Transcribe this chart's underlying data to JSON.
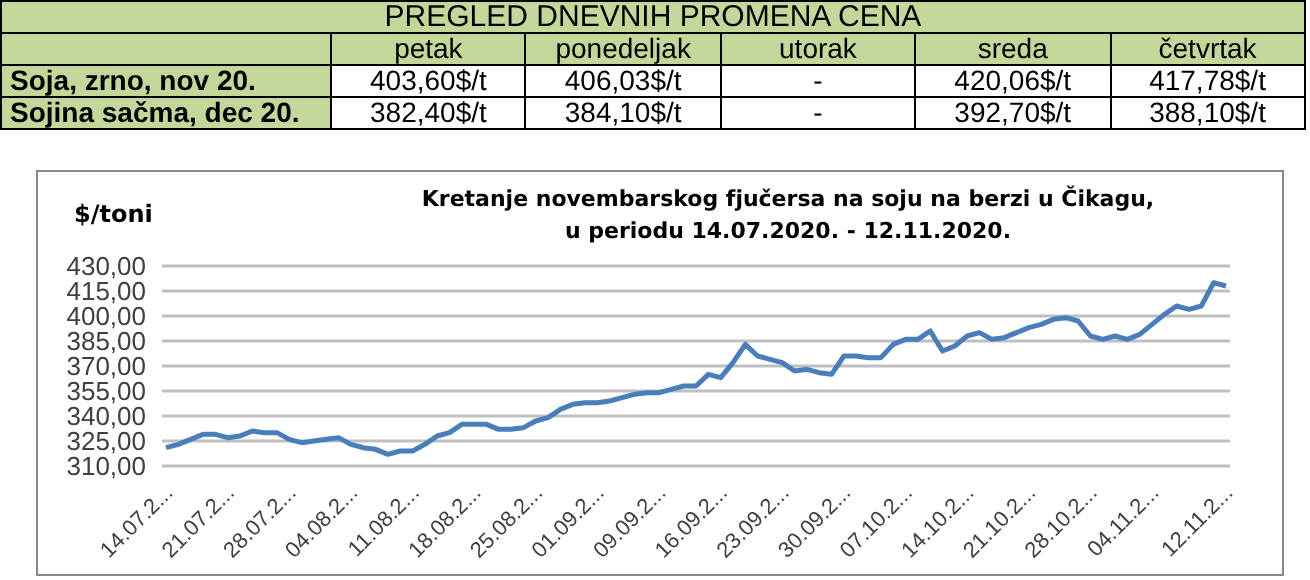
{
  "chart_data": [
    {
      "type": "other",
      "title": "PREGLED DNEVNIH PROMENA CENA",
      "categories": [
        "petak",
        "ponedeljak",
        "utorak",
        "sreda",
        "četvrtak"
      ],
      "series": [
        {
          "name": "Soja, zrno,  nov 20.",
          "values": [
            403.6,
            406.03,
            null,
            420.06,
            417.78
          ],
          "value_labels": [
            "403,60$/t",
            "406,03$/t",
            "-",
            "420,06$/t",
            "417,78$/t"
          ]
        },
        {
          "name": "Sojina sačma,  dec 20.",
          "values": [
            382.4,
            384.1,
            null,
            392.7,
            388.1
          ],
          "value_labels": [
            "382,40$/t",
            "384,10$/t",
            "-",
            "392,70$/t",
            "388,10$/t"
          ]
        }
      ]
    },
    {
      "type": "line",
      "title": "Kretanje novembarskog fjučersa na soju na berzi u Čikagu,\nu periodu  14.07.2020. - 12.11.2020.",
      "ylabel": "$/toni",
      "categories": [
        "14.07.2...",
        null,
        null,
        null,
        null,
        "21.07.2...",
        null,
        null,
        null,
        null,
        "28.07.2...",
        null,
        null,
        null,
        null,
        "04.08.2...",
        null,
        null,
        null,
        null,
        "11.08.2...",
        null,
        null,
        null,
        null,
        "18.08.2...",
        null,
        null,
        null,
        null,
        "25.08.2...",
        null,
        null,
        null,
        null,
        "01.09.2...",
        null,
        null,
        null,
        null,
        "09.09.2...",
        null,
        null,
        null,
        null,
        "16.09.2...",
        null,
        null,
        null,
        null,
        "23.09.2...",
        null,
        null,
        null,
        null,
        "30.09.2...",
        null,
        null,
        null,
        null,
        "07.10.2...",
        null,
        null,
        null,
        null,
        "14.10.2...",
        null,
        null,
        null,
        null,
        "21.10.2...",
        null,
        null,
        null,
        null,
        "28.10.2...",
        null,
        null,
        null,
        null,
        "04.11.2...",
        null,
        null,
        null,
        null,
        null,
        "12.11.2..."
      ],
      "series": [
        {
          "color": "#4a7ebb",
          "values": [
            321,
            323,
            326,
            329,
            329,
            327,
            328,
            331,
            330,
            330,
            326,
            324,
            325,
            326,
            327,
            323,
            321,
            320,
            317,
            319,
            319,
            323,
            328,
            330,
            335,
            335,
            335,
            332,
            332,
            333,
            337,
            339,
            344,
            347,
            348,
            348,
            349,
            351,
            353,
            354,
            354,
            356,
            358,
            358,
            365,
            363,
            372,
            383,
            376,
            374,
            372,
            367,
            368,
            366,
            365,
            376,
            376,
            375,
            375,
            383,
            386,
            386,
            391,
            379,
            382,
            388,
            390,
            386,
            387,
            390,
            393,
            395,
            398,
            399,
            397,
            388,
            386,
            388,
            386,
            389,
            395,
            401,
            406,
            404,
            406,
            420,
            418
          ]
        }
      ],
      "ylim": [
        310,
        430
      ],
      "yticks": [
        {
          "value": 310,
          "label": "310,00"
        },
        {
          "value": 325,
          "label": "325,00"
        },
        {
          "value": 340,
          "label": "340,00"
        },
        {
          "value": 355,
          "label": "355,00"
        },
        {
          "value": 370,
          "label": "370,00"
        },
        {
          "value": 385,
          "label": "385,00"
        },
        {
          "value": 400,
          "label": "400,00"
        },
        {
          "value": 415,
          "label": "415,00"
        },
        {
          "value": 430,
          "label": "430,00"
        }
      ],
      "grid": "y",
      "marker": "none",
      "line_style": "solid"
    }
  ]
}
